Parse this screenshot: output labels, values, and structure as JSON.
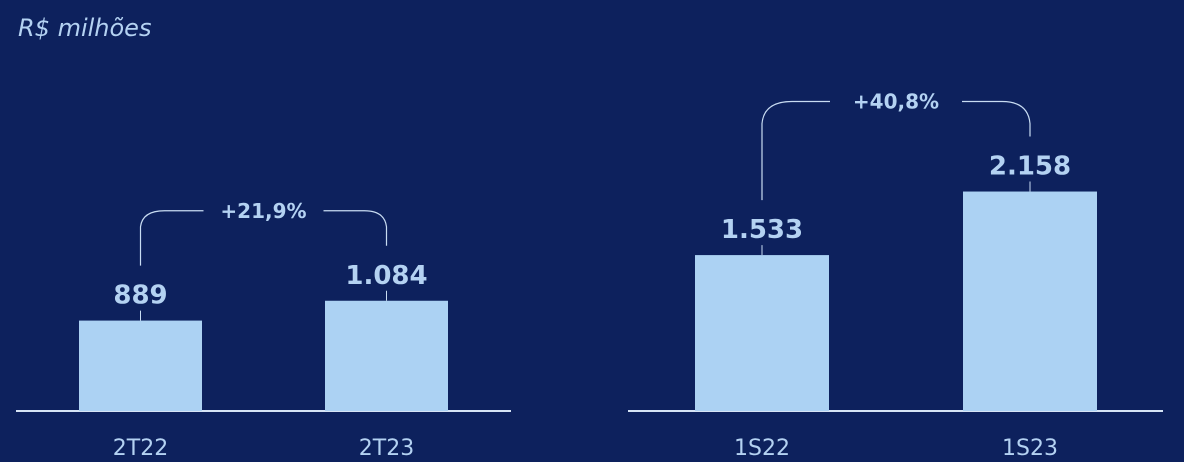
{
  "unit_label": "R$ milhões",
  "colors": {
    "background": "#0d215d",
    "bar": "#acd2f3",
    "text": "#b4d2f2",
    "axis": "#d6e4f5",
    "bracket": "#c8dcf2"
  },
  "chart_data": [
    {
      "type": "bar",
      "categories": [
        "2T22",
        "2T23"
      ],
      "values": [
        889,
        1084
      ],
      "value_labels": [
        "889",
        "1.084"
      ],
      "growth_label": "+21,9%",
      "ylim": [
        0,
        2500
      ],
      "grid": false
    },
    {
      "type": "bar",
      "categories": [
        "1S22",
        "1S23"
      ],
      "values": [
        1533,
        2158
      ],
      "value_labels": [
        "1.533",
        "2.158"
      ],
      "growth_label": "+40,8%",
      "ylim": [
        0,
        2500
      ],
      "grid": false
    }
  ]
}
